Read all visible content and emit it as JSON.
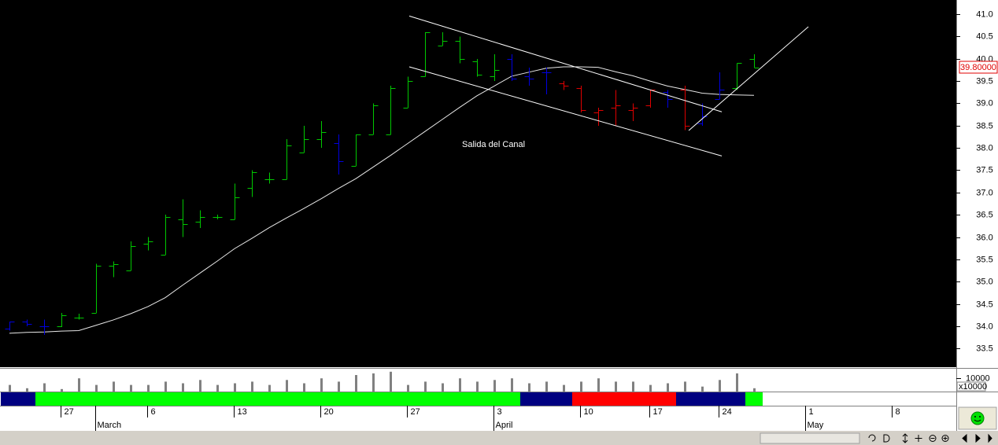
{
  "chart_data": {
    "type": "ohlc",
    "categories": [
      null,
      null,
      null,
      "27",
      null,
      null,
      null,
      null,
      "6",
      null,
      null,
      null,
      null,
      "13",
      null,
      null,
      null,
      null,
      "20",
      null,
      null,
      null,
      null,
      "27",
      null,
      null,
      null,
      null,
      "3",
      null,
      null,
      null,
      null,
      "10",
      null,
      null,
      null,
      "17",
      null,
      null,
      null,
      "24",
      null,
      null,
      null,
      null,
      "1",
      null,
      null,
      null,
      null,
      "8",
      null,
      null,
      null
    ],
    "months": [
      null,
      null,
      null,
      null,
      null,
      "March",
      null,
      null,
      null,
      null,
      null,
      null,
      null,
      null,
      null,
      null,
      null,
      null,
      null,
      null,
      null,
      null,
      null,
      null,
      null,
      null,
      null,
      null,
      "April",
      null,
      null,
      null,
      null,
      null,
      null,
      null,
      null,
      null,
      null,
      null,
      null,
      null,
      null,
      null,
      null,
      null,
      "May",
      null,
      null,
      null,
      null,
      null,
      null,
      null,
      null
    ],
    "open": [
      33.95,
      34.1,
      34.0,
      34.0,
      34.2,
      34.3,
      35.35,
      35.25,
      35.85,
      35.6,
      36.4,
      36.35,
      36.45,
      36.4,
      37.1,
      37.3,
      37.3,
      37.9,
      38.2,
      38.1,
      37.6,
      38.3,
      38.3,
      38.9,
      39.6,
      40.3,
      40.4,
      39.95,
      39.6,
      40.0,
      39.6,
      39.7,
      39.45,
      39.35,
      38.8,
      38.9,
      38.85,
      38.95,
      39.25,
      39.3,
      38.55,
      39.1,
      39.35,
      40.0,
      null,
      null,
      null,
      null,
      null,
      null,
      null,
      null,
      null,
      null,
      null
    ],
    "high": [
      34.1,
      34.15,
      34.15,
      34.3,
      34.28,
      35.4,
      35.45,
      35.9,
      36.0,
      36.5,
      36.85,
      36.6,
      36.5,
      37.2,
      37.5,
      37.45,
      38.2,
      38.5,
      38.6,
      38.3,
      38.3,
      39.0,
      39.4,
      39.6,
      40.6,
      40.6,
      40.5,
      40.0,
      40.1,
      40.1,
      39.8,
      39.8,
      39.5,
      39.4,
      38.9,
      39.3,
      39.0,
      39.3,
      39.3,
      39.4,
      39.0,
      39.7,
      39.9,
      40.1,
      null,
      null,
      null,
      null,
      null,
      null,
      null,
      null,
      null,
      null,
      null
    ],
    "low": [
      33.9,
      34.0,
      33.8,
      33.98,
      34.15,
      34.3,
      35.1,
      35.25,
      35.7,
      35.6,
      36.0,
      36.2,
      36.4,
      36.4,
      36.9,
      37.2,
      37.3,
      37.9,
      38.0,
      37.4,
      37.6,
      38.3,
      38.3,
      38.9,
      39.6,
      40.3,
      39.9,
      39.6,
      39.5,
      39.5,
      39.4,
      39.2,
      39.3,
      38.8,
      38.5,
      38.5,
      38.6,
      38.9,
      38.9,
      38.4,
      38.5,
      39.1,
      39.3,
      39.8,
      null,
      null,
      null,
      null,
      null,
      null,
      null,
      null,
      null,
      null,
      null
    ],
    "close": [
      34.1,
      34.05,
      34.0,
      34.25,
      34.2,
      35.35,
      35.4,
      35.8,
      35.9,
      36.45,
      36.3,
      36.45,
      36.45,
      36.9,
      37.45,
      37.3,
      38.05,
      38.2,
      38.35,
      37.7,
      38.3,
      38.95,
      39.35,
      39.5,
      40.6,
      40.4,
      40.0,
      39.65,
      39.75,
      39.55,
      39.55,
      39.7,
      39.4,
      38.85,
      38.85,
      38.95,
      38.9,
      39.3,
      39.1,
      38.5,
      38.7,
      39.3,
      39.9,
      39.8,
      null,
      null,
      null,
      null,
      null,
      null,
      null,
      null,
      null,
      null,
      null
    ],
    "bar_colors": [
      "#0000e0",
      "#0000e0",
      "#0000e0",
      "#00c800",
      "#00c800",
      "#00c800",
      "#00c800",
      "#00c800",
      "#00c800",
      "#00c800",
      "#00c800",
      "#00c800",
      "#00c800",
      "#00c800",
      "#00c800",
      "#00c800",
      "#00c800",
      "#00c800",
      "#00c800",
      "#0000e0",
      "#00c800",
      "#00c800",
      "#00c800",
      "#00c800",
      "#00c800",
      "#00c800",
      "#00c800",
      "#00c800",
      "#00c800",
      "#0000e0",
      "#0000e0",
      "#0000e0",
      "#e00000",
      "#e00000",
      "#e00000",
      "#e00000",
      "#e00000",
      "#e00000",
      "#0000e0",
      "#e00000",
      "#0000e0",
      "#0000e0",
      "#00c800",
      "#00c800"
    ],
    "ylim": [
      33.08,
      41.32
    ],
    "yticks": [
      33.5,
      {
        "value": 34,
        "label": "34.0"
      },
      34.5,
      {
        "value": 35,
        "label": "35.0"
      },
      35.5,
      {
        "value": 36,
        "label": "36.0"
      },
      36.5,
      {
        "value": 37,
        "label": "37.0"
      },
      37.5,
      {
        "value": 38,
        "label": "38.0"
      },
      38.5,
      {
        "value": 39,
        "label": "39.0"
      },
      39.5,
      {
        "value": 40,
        "label": "40.0"
      },
      40.5,
      {
        "value": 41,
        "label": "41.0"
      }
    ],
    "ma": {
      "color": "#e8e8e8",
      "values": [
        33.84,
        33.86,
        33.87,
        33.89,
        33.9,
        34.02,
        34.14,
        34.28,
        34.44,
        34.64,
        34.92,
        35.19,
        35.46,
        35.74,
        35.97,
        36.21,
        36.43,
        36.64,
        36.86,
        37.09,
        37.31,
        37.57,
        37.83,
        38.1,
        38.37,
        38.64,
        38.91,
        39.17,
        39.39,
        39.61,
        39.7,
        39.79,
        39.82,
        39.82,
        39.81,
        39.71,
        39.62,
        39.5,
        39.39,
        39.31,
        39.23,
        39.2,
        39.19,
        39.18,
        null,
        null,
        null,
        null,
        null,
        null,
        null,
        null,
        null,
        null,
        null
      ]
    },
    "trendlines": [
      {
        "x": [
          23.09,
          41.14
        ],
        "y": [
          40.96,
          38.81
        ]
      },
      {
        "x": [
          23.09,
          41.14
        ],
        "y": [
          39.82,
          37.82
        ]
      },
      {
        "x": [
          39.23,
          46.14
        ],
        "y": [
          38.39,
          40.72
        ]
      }
    ],
    "annotation": "Salida del Canal",
    "last_price": 39.8,
    "last_price_label": "39.80000",
    "volume": {
      "color": "#808080",
      "ylim": [
        0,
        16000
      ],
      "yticks": [
        10000
      ],
      "unit_label": "x10000",
      "values": [
        4800,
        2400,
        6000,
        1800,
        9600,
        4800,
        7200,
        4800,
        4800,
        7200,
        6000,
        8400,
        4800,
        6000,
        7200,
        4800,
        8400,
        6000,
        9600,
        7200,
        12000,
        13200,
        14400,
        4800,
        7200,
        6000,
        9600,
        7200,
        8400,
        9600,
        6000,
        7200,
        4800,
        7200,
        9600,
        7200,
        7200,
        4800,
        6000,
        7200,
        3600,
        8400,
        13200,
        2400,
        null,
        null,
        null,
        null,
        null,
        null,
        null,
        null,
        null,
        null,
        null
      ]
    },
    "trend_band": [
      "#000080",
      "#000080",
      "#00ff00",
      "#00ff00",
      "#00ff00",
      "#00ff00",
      "#00ff00",
      "#00ff00",
      "#00ff00",
      "#00ff00",
      "#00ff00",
      "#00ff00",
      "#00ff00",
      "#00ff00",
      "#00ff00",
      "#00ff00",
      "#00ff00",
      "#00ff00",
      "#00ff00",
      "#00ff00",
      "#00ff00",
      "#00ff00",
      "#00ff00",
      "#00ff00",
      "#00ff00",
      "#00ff00",
      "#00ff00",
      "#00ff00",
      "#00ff00",
      "#00ff00",
      "#000080",
      "#000080",
      "#000080",
      "#ff0000",
      "#ff0000",
      "#ff0000",
      "#ff0000",
      "#ff0000",
      "#ff0000",
      "#000080",
      "#000080",
      "#000080",
      "#000080",
      "#00ff00"
    ]
  }
}
